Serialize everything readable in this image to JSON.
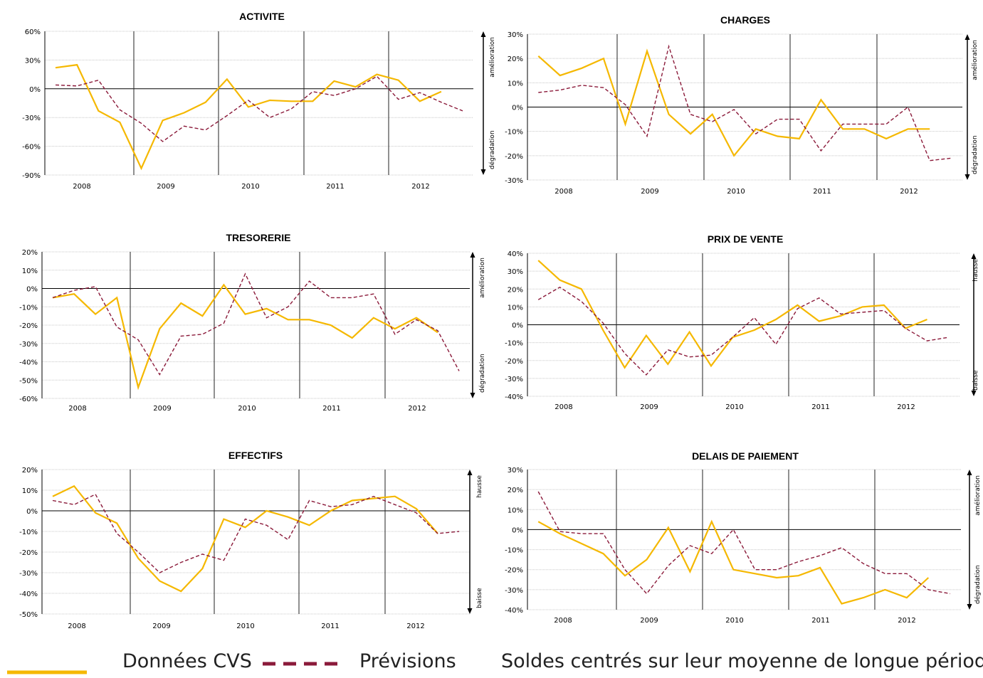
{
  "legend": {
    "cvs_label": "Données CVS",
    "prev_label": "Prévisions",
    "note": "Soldes centrés sur leur moyenne de longue période"
  },
  "colors": {
    "cvs": "#f5b800",
    "prev": "#8b1a3a",
    "grid": "#c8c8c8",
    "year_divider": "#222222",
    "zero_line": "#000000"
  },
  "chart_data": [
    {
      "type": "line",
      "title": "ACTIVITE",
      "ylim": [
        -90,
        60
      ],
      "yticks": [
        -90,
        -60,
        -30,
        0,
        30,
        60
      ],
      "ytick_labels": [
        "-90%",
        "-60%",
        "-30%",
        "0%",
        "30%",
        "60%"
      ],
      "x_labels": [
        "2008",
        "2009",
        "2010",
        "2011",
        "2012"
      ],
      "side_labels": {
        "top": "amélioration",
        "bottom": "dégradation"
      },
      "grid": true,
      "series": [
        {
          "name": "Données CVS",
          "values": [
            22,
            25,
            -23,
            -35,
            -83,
            -33,
            -25,
            -14,
            10,
            -19,
            -12,
            -13,
            -13,
            8,
            2,
            15,
            9,
            -13,
            -3
          ]
        },
        {
          "name": "Prévisions",
          "values": [
            4,
            3,
            9,
            -22,
            -36,
            -55,
            -39,
            -43,
            -28,
            -12,
            -30,
            -21,
            -3,
            -7,
            0,
            13,
            -11,
            -4,
            -14,
            -23
          ]
        }
      ]
    },
    {
      "type": "line",
      "title": "CHARGES",
      "ylim": [
        -30,
        30
      ],
      "yticks": [
        -30,
        -20,
        -10,
        0,
        10,
        20,
        30
      ],
      "ytick_labels": [
        "-30%",
        "-20%",
        "-10%",
        "0%",
        "10%",
        "20%",
        "30%"
      ],
      "x_labels": [
        "2008",
        "2009",
        "2010",
        "2011",
        "2012"
      ],
      "side_labels": {
        "top": "amélioration",
        "bottom": "dégradation"
      },
      "grid": true,
      "series": [
        {
          "name": "Données CVS",
          "values": [
            21,
            13,
            16,
            20,
            -7,
            23,
            -3,
            -11,
            -3,
            -20,
            -9,
            -12,
            -13,
            3,
            -9,
            -9,
            -13,
            -9,
            -9
          ]
        },
        {
          "name": "Prévisions",
          "values": [
            6,
            7,
            9,
            8,
            1,
            -12,
            25,
            -3,
            -6,
            -1,
            -11,
            -5,
            -5,
            -18,
            -7,
            -7,
            -7,
            0,
            -22,
            -21
          ]
        }
      ]
    },
    {
      "type": "line",
      "title": "TRESORERIE",
      "ylim": [
        -60,
        20
      ],
      "yticks": [
        -60,
        -50,
        -40,
        -30,
        -20,
        -10,
        0,
        10,
        20
      ],
      "ytick_labels": [
        "-60%",
        "-50%",
        "-40%",
        "-30%",
        "-20%",
        "-10%",
        "0%",
        "10%",
        "20%"
      ],
      "x_labels": [
        "2008",
        "2009",
        "2010",
        "2011",
        "2012"
      ],
      "side_labels": {
        "top": "amélioration",
        "bottom": "dégradation"
      },
      "grid": true,
      "series": [
        {
          "name": "Données CVS",
          "values": [
            -5,
            -3,
            -14,
            -5,
            -54,
            -22,
            -8,
            -15,
            2,
            -14,
            -11,
            -17,
            -17,
            -20,
            -27,
            -16,
            -22,
            -16,
            -24
          ]
        },
        {
          "name": "Prévisions",
          "values": [
            -5,
            -1,
            1,
            -21,
            -28,
            -47,
            -26,
            -25,
            -19,
            8,
            -16,
            -10,
            4,
            -5,
            -5,
            -3,
            -25,
            -17,
            -23,
            -45
          ]
        }
      ]
    },
    {
      "type": "line",
      "title": "PRIX DE VENTE",
      "ylim": [
        -40,
        40
      ],
      "yticks": [
        -40,
        -30,
        -20,
        -10,
        0,
        10,
        20,
        30,
        40
      ],
      "ytick_labels": [
        "-40%",
        "-30%",
        "-20%",
        "-10%",
        "0%",
        "10%",
        "20%",
        "30%",
        "40%"
      ],
      "x_labels": [
        "2008",
        "2009",
        "2010",
        "2011",
        "2012"
      ],
      "side_labels": {
        "top": "hausse",
        "bottom": "baisse"
      },
      "grid": true,
      "series": [
        {
          "name": "Données CVS",
          "values": [
            36,
            25,
            20,
            -3,
            -24,
            -6,
            -22,
            -4,
            -23,
            -7,
            -3,
            3,
            11,
            2,
            5,
            10,
            11,
            -2,
            3
          ]
        },
        {
          "name": "Prévisions",
          "values": [
            14,
            21,
            13,
            1,
            -16,
            -28,
            -14,
            -18,
            -17,
            -7,
            4,
            -11,
            9,
            15,
            6,
            7,
            8,
            -2,
            -9,
            -7
          ]
        }
      ]
    },
    {
      "type": "line",
      "title": "EFFECTIFS",
      "ylim": [
        -50,
        20
      ],
      "yticks": [
        -50,
        -40,
        -30,
        -20,
        -10,
        0,
        10,
        20
      ],
      "ytick_labels": [
        "-50%",
        "-40%",
        "-30%",
        "-20%",
        "-10%",
        "0%",
        "10%",
        "20%"
      ],
      "x_labels": [
        "2008",
        "2009",
        "2010",
        "2011",
        "2012"
      ],
      "side_labels": {
        "top": "hausse",
        "bottom": "baisse"
      },
      "grid": true,
      "series": [
        {
          "name": "Données CVS",
          "values": [
            7,
            12,
            -1,
            -6,
            -23,
            -34,
            -39,
            -28,
            -4,
            -8,
            0,
            -3,
            -7,
            0,
            5,
            6,
            7,
            1,
            -11
          ]
        },
        {
          "name": "Prévisions",
          "values": [
            5,
            3,
            8,
            -11,
            -20,
            -30,
            -25,
            -21,
            -24,
            -4,
            -7,
            -14,
            5,
            2,
            3,
            7,
            3,
            -1,
            -11,
            -10
          ]
        }
      ]
    },
    {
      "type": "line",
      "title": "DELAIS DE PAIEMENT",
      "ylim": [
        -40,
        30
      ],
      "yticks": [
        -40,
        -30,
        -20,
        -10,
        0,
        10,
        20,
        30
      ],
      "ytick_labels": [
        "-40%",
        "-30%",
        "-20%",
        "-10%",
        "0%",
        "10%",
        "20%",
        "30%"
      ],
      "x_labels": [
        "2008",
        "2009",
        "2010",
        "2011",
        "2012"
      ],
      "side_labels": {
        "top": "amélioration",
        "bottom": "dégradation"
      },
      "grid": true,
      "series": [
        {
          "name": "Données CVS",
          "values": [
            4,
            -2,
            -7,
            -12,
            -23,
            -15,
            1,
            -21,
            4,
            -20,
            -22,
            -24,
            -23,
            -19,
            -37,
            -34,
            -30,
            -34,
            -24
          ]
        },
        {
          "name": "Prévisions",
          "values": [
            19,
            -1,
            -2,
            -2,
            -20,
            -32,
            -18,
            -8,
            -12,
            0,
            -20,
            -20,
            -16,
            -13,
            -9,
            -17,
            -22,
            -22,
            -30,
            -32
          ]
        }
      ]
    }
  ]
}
